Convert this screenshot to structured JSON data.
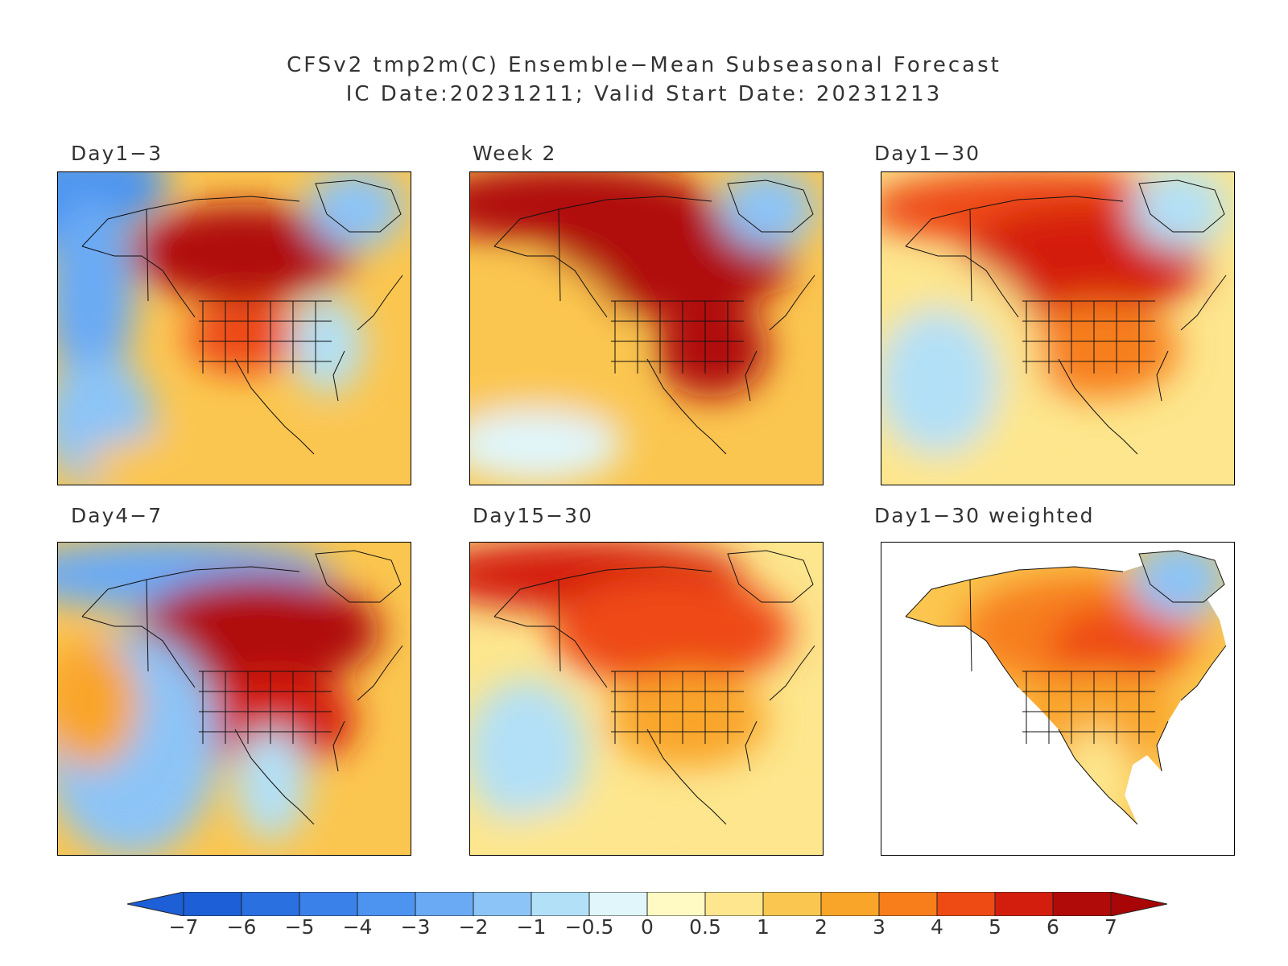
{
  "header": {
    "title_line1": "CFSv2 tmp2m(C) Ensemble−Mean Subseasonal Forecast",
    "title_line2": "IC Date:20231211; Valid Start Date: 20231213"
  },
  "panels": [
    {
      "id": "day1-3",
      "label": "Day1−3",
      "mask_ocean": false,
      "anomalies": [
        {
          "value": -4,
          "region": "alaska-bering"
        },
        {
          "value": -3,
          "region": "north-pacific-west"
        },
        {
          "value": -2,
          "region": "east-pacific"
        },
        {
          "value": 6,
          "region": "western-central-canada"
        },
        {
          "value": 4,
          "region": "central-us"
        },
        {
          "value": -1,
          "region": "eastern-us"
        },
        {
          "value": -2,
          "region": "greenland"
        },
        {
          "value": 1,
          "region": "tropics"
        }
      ]
    },
    {
      "id": "week2",
      "label": "Week 2",
      "mask_ocean": false,
      "anomalies": [
        {
          "value": 6,
          "region": "alaska-arctic"
        },
        {
          "value": 6,
          "region": "canada"
        },
        {
          "value": 6,
          "region": "central-east-us"
        },
        {
          "value": -2,
          "region": "greenland"
        },
        {
          "value": 1,
          "region": "pacific"
        },
        {
          "value": -0.5,
          "region": "south-pacific"
        }
      ]
    },
    {
      "id": "day1-30",
      "label": "Day1−30",
      "mask_ocean": false,
      "anomalies": [
        {
          "value": 4,
          "region": "arctic"
        },
        {
          "value": 5,
          "region": "canada"
        },
        {
          "value": 3,
          "region": "us"
        },
        {
          "value": -1,
          "region": "greenland"
        },
        {
          "value": 0.5,
          "region": "pacific"
        },
        {
          "value": -1,
          "region": "subtropical-pacific"
        }
      ]
    },
    {
      "id": "day4-7",
      "label": "Day4−7",
      "mask_ocean": false,
      "anomalies": [
        {
          "value": -3,
          "region": "arctic-alaska"
        },
        {
          "value": 6,
          "region": "canada"
        },
        {
          "value": 5,
          "region": "us"
        },
        {
          "value": -1,
          "region": "mexico"
        },
        {
          "value": -2,
          "region": "pacific"
        },
        {
          "value": 2,
          "region": "north-pacific"
        }
      ]
    },
    {
      "id": "day15-30",
      "label": "Day15−30",
      "mask_ocean": false,
      "anomalies": [
        {
          "value": 5,
          "region": "arctic-alaska"
        },
        {
          "value": 4,
          "region": "canada"
        },
        {
          "value": 2,
          "region": "us"
        },
        {
          "value": -1,
          "region": "subtropical-pacific"
        },
        {
          "value": 0.5,
          "region": "tropics"
        }
      ]
    },
    {
      "id": "day1-30-weighted",
      "label": "Day1−30 weighted",
      "mask_ocean": true,
      "anomalies": [
        {
          "value": 3,
          "region": "canada"
        },
        {
          "value": 4,
          "region": "hudson-region"
        },
        {
          "value": 2,
          "region": "us"
        },
        {
          "value": 0.5,
          "region": "mexico"
        },
        {
          "value": -2,
          "region": "greenland"
        }
      ]
    }
  ],
  "colorbar": {
    "labels": [
      "−7",
      "−6",
      "−5",
      "−4",
      "−3",
      "−2",
      "−1",
      "−0.5",
      "0",
      "0.5",
      "1",
      "2",
      "3",
      "4",
      "5",
      "6",
      "7"
    ],
    "colors": [
      "#1c5fd6",
      "#2a70e0",
      "#3a82ea",
      "#4c94f0",
      "#6aaaf5",
      "#8cc4f7",
      "#b2e0f7",
      "#e0f6fb",
      "#fff9c4",
      "#fde68d",
      "#fbc64f",
      "#f9a52a",
      "#f77e1b",
      "#ee4a14",
      "#d41e0d",
      "#b00b08"
    ],
    "low_color": "#1c5fd6",
    "high_color": "#a80606"
  }
}
